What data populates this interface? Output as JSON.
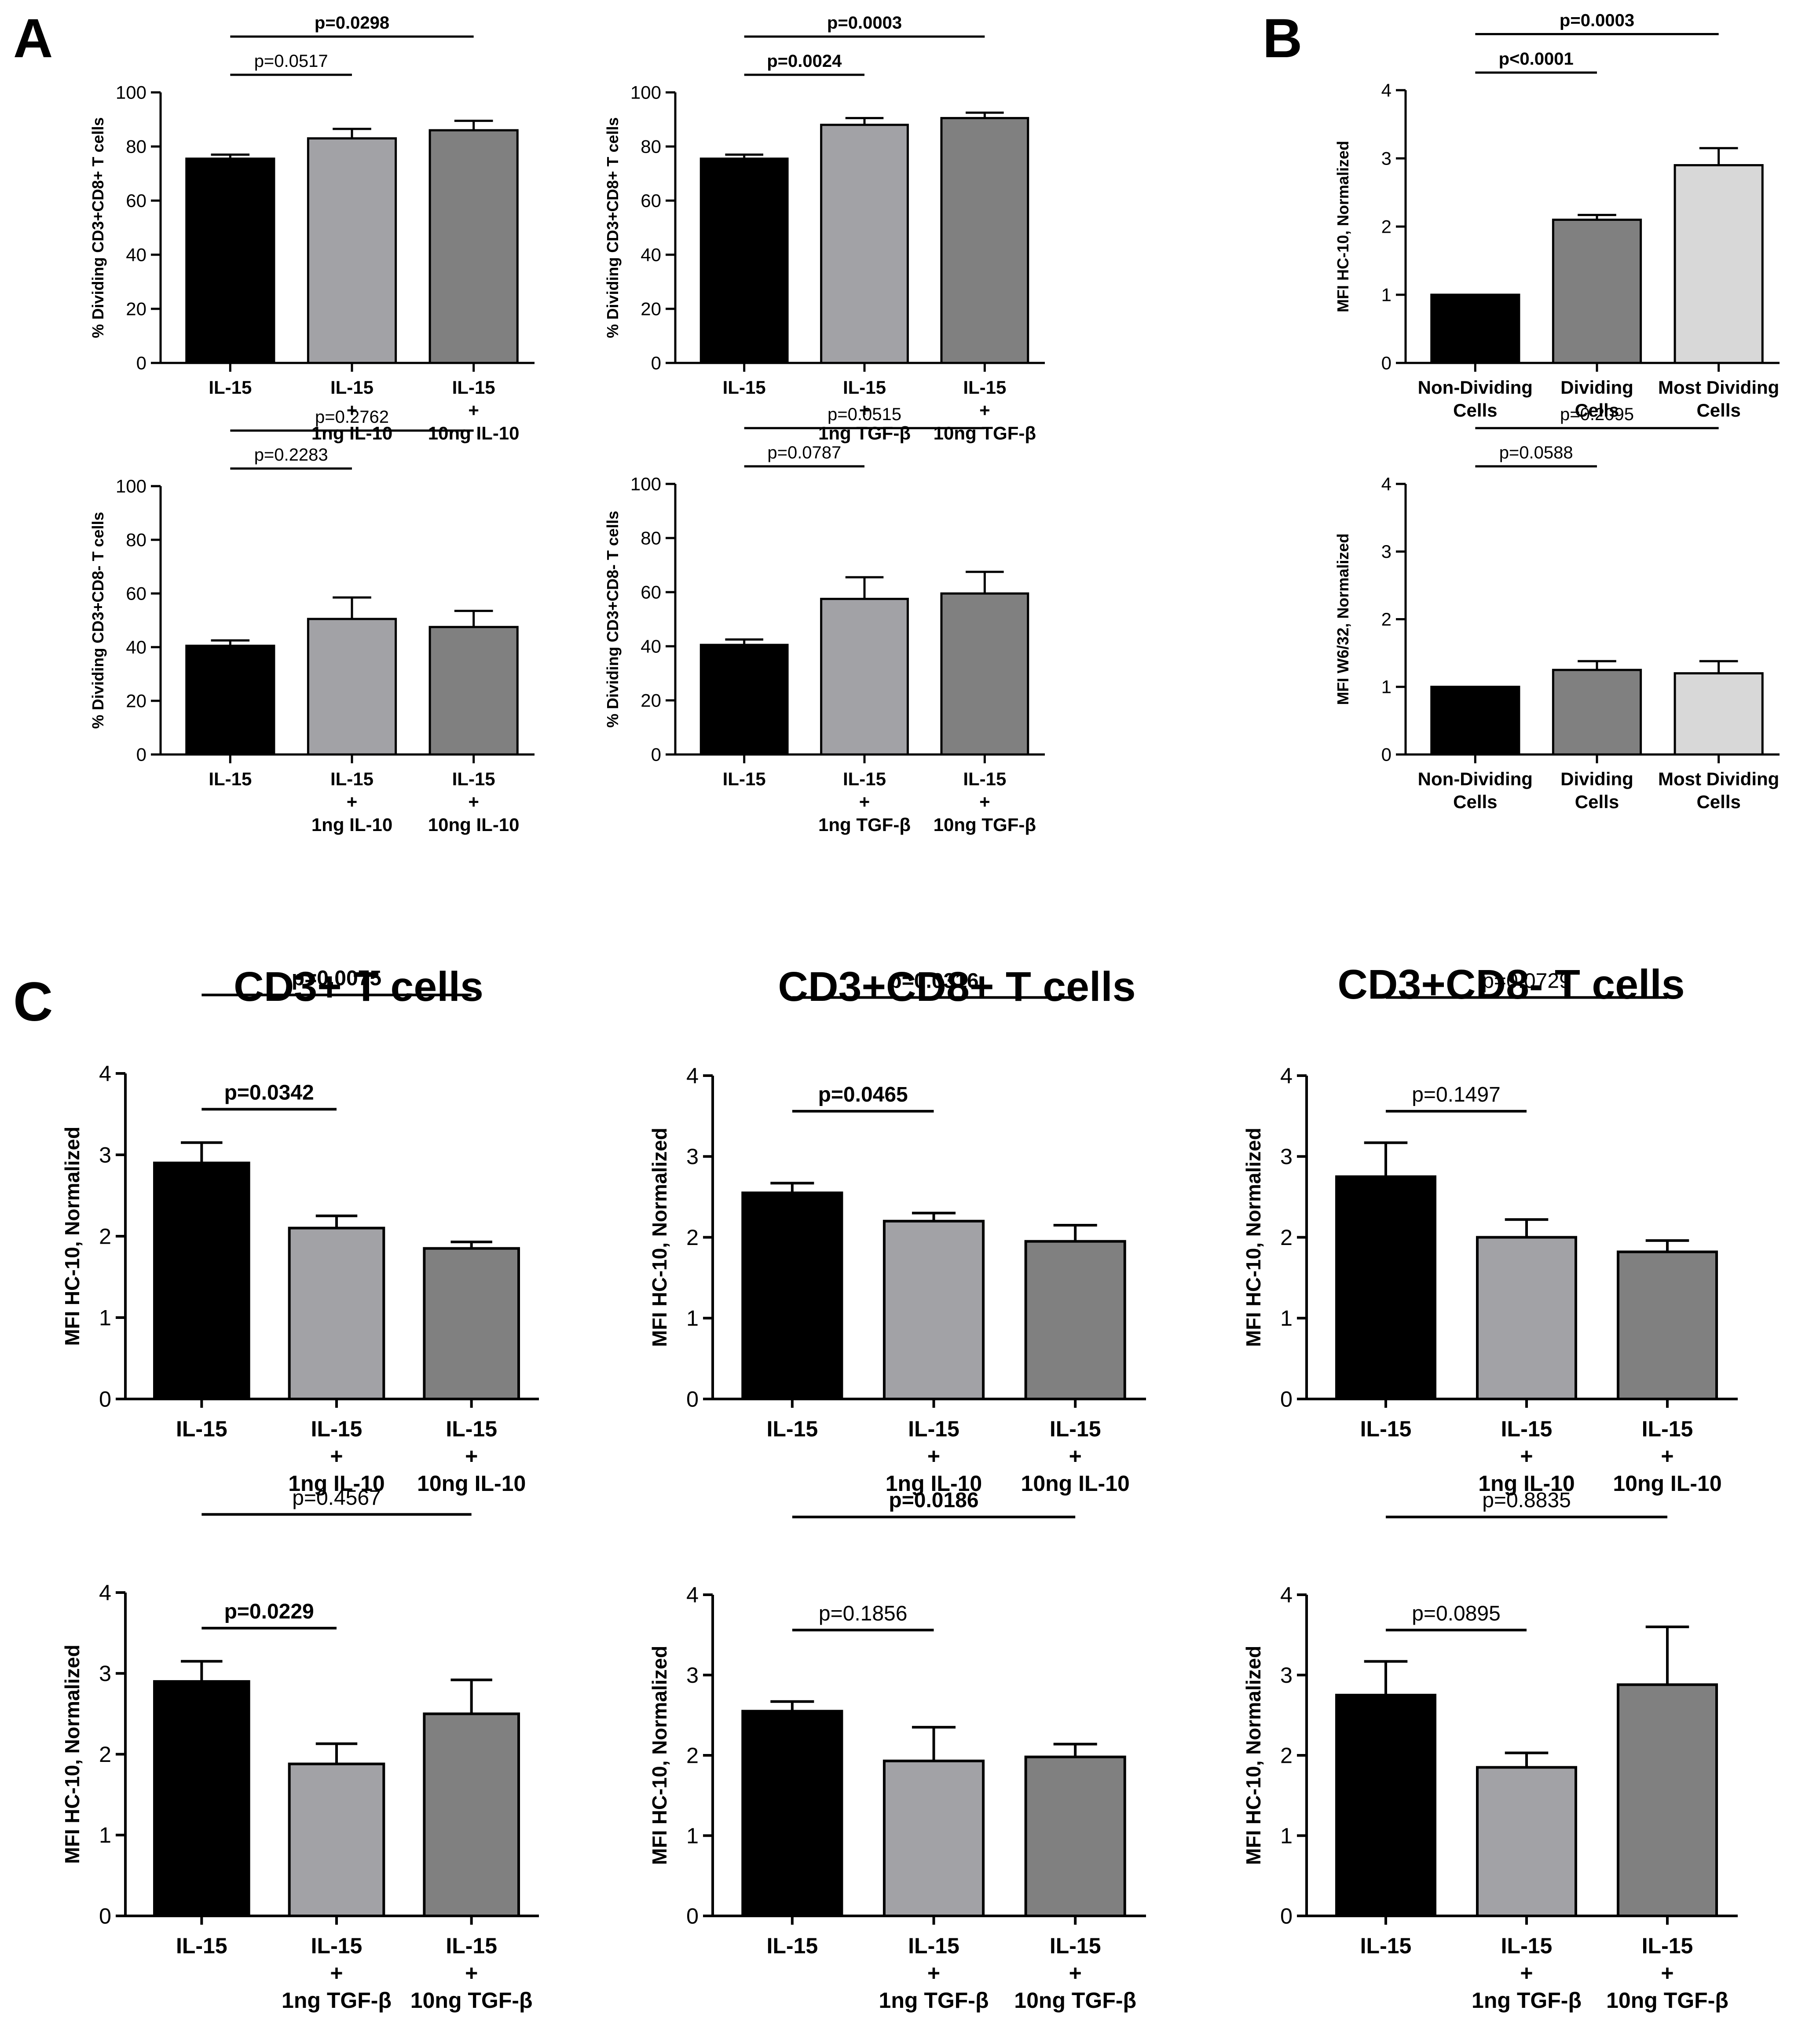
{
  "panel_labels": [
    "A",
    "B",
    "C"
  ],
  "section_titles": [
    "CD3+ T cells",
    "CD3+CD8+ T cells",
    "CD3+CD8- T cells"
  ],
  "colors": {
    "black": "#000000",
    "light_gray": "#a2a2a6",
    "mid_gray": "#808080",
    "pale_gray": "#d8d8d8"
  },
  "chart_data": [
    {
      "type": "bar",
      "panel": "A",
      "ylabel": "% Dividing CD3+CD8+ T cells",
      "ylim": [
        0,
        100
      ],
      "yticks": [
        "0",
        "20",
        "40",
        "60",
        "80",
        "100"
      ],
      "categories": [
        [
          "IL-15"
        ],
        [
          "IL-15",
          "+",
          "1ng IL-10"
        ],
        [
          "IL-15",
          "+",
          "10ng IL-10"
        ]
      ],
      "values": [
        75.5,
        83,
        86
      ],
      "errors": [
        1.5,
        3.5,
        3.5
      ],
      "colors": [
        "black",
        "light_gray",
        "mid_gray"
      ],
      "pvalues": [
        {
          "text": "p=0.0517",
          "from": 0,
          "to": 1,
          "bold": false
        },
        {
          "text": "p=0.0298",
          "from": 0,
          "to": 2,
          "bold": true
        }
      ]
    },
    {
      "type": "bar",
      "panel": "A",
      "ylabel": "% Dividing CD3+CD8+ T cells",
      "ylim": [
        0,
        100
      ],
      "yticks": [
        "0",
        "20",
        "40",
        "60",
        "80",
        "100"
      ],
      "categories": [
        [
          "IL-15"
        ],
        [
          "IL-15",
          "+",
          "1ng TGF-β"
        ],
        [
          "IL-15",
          "+",
          "10ng TGF-β"
        ]
      ],
      "values": [
        75.5,
        88,
        90.5
      ],
      "errors": [
        1.5,
        2.5,
        2
      ],
      "colors": [
        "black",
        "light_gray",
        "mid_gray"
      ],
      "pvalues": [
        {
          "text": "p=0.0024",
          "from": 0,
          "to": 1,
          "bold": true
        },
        {
          "text": "p=0.0003",
          "from": 0,
          "to": 2,
          "bold": true
        }
      ]
    },
    {
      "type": "bar",
      "panel": "B",
      "ylabel": "MFI HC-10, Normalized",
      "ylim": [
        0,
        4
      ],
      "yticks": [
        "0",
        "1",
        "2",
        "3",
        "4"
      ],
      "categories": [
        [
          "Non-Dividing",
          "Cells"
        ],
        [
          "Dividing",
          "Cells"
        ],
        [
          "Most Dividing",
          "Cells"
        ]
      ],
      "values": [
        1.0,
        2.1,
        2.9
      ],
      "errors": [
        0,
        0.07,
        0.25
      ],
      "colors": [
        "black",
        "mid_gray",
        "pale_gray"
      ],
      "pvalues": [
        {
          "text": "p<0.0001",
          "from": 0,
          "to": 1,
          "bold": true
        },
        {
          "text": "p=0.0003",
          "from": 0,
          "to": 2,
          "bold": true
        }
      ]
    },
    {
      "type": "bar",
      "panel": "A",
      "ylabel": "% Dividing CD3+CD8- T cells",
      "ylim": [
        0,
        100
      ],
      "yticks": [
        "0",
        "20",
        "40",
        "60",
        "80",
        "100"
      ],
      "categories": [
        [
          "IL-15"
        ],
        [
          "IL-15",
          "+",
          "1ng IL-10"
        ],
        [
          "IL-15",
          "+",
          "10ng IL-10"
        ]
      ],
      "values": [
        40.5,
        50.5,
        47.5
      ],
      "errors": [
        2,
        8,
        6
      ],
      "colors": [
        "black",
        "light_gray",
        "mid_gray"
      ],
      "pvalues": [
        {
          "text": "p=0.2283",
          "from": 0,
          "to": 1,
          "bold": false
        },
        {
          "text": "p=0.2762",
          "from": 0,
          "to": 2,
          "bold": false
        }
      ]
    },
    {
      "type": "bar",
      "panel": "A",
      "ylabel": "% Dividing CD3+CD8- T cells",
      "ylim": [
        0,
        100
      ],
      "yticks": [
        "0",
        "20",
        "40",
        "60",
        "80",
        "100"
      ],
      "categories": [
        [
          "IL-15"
        ],
        [
          "IL-15",
          "+",
          "1ng TGF-β"
        ],
        [
          "IL-15",
          "+",
          "10ng TGF-β"
        ]
      ],
      "values": [
        40.5,
        57.5,
        59.5
      ],
      "errors": [
        2,
        8,
        8
      ],
      "colors": [
        "black",
        "light_gray",
        "mid_gray"
      ],
      "pvalues": [
        {
          "text": "p=0.0787",
          "from": 0,
          "to": 1,
          "bold": false
        },
        {
          "text": "p=0.0515",
          "from": 0,
          "to": 2,
          "bold": false
        }
      ]
    },
    {
      "type": "bar",
      "panel": "B",
      "ylabel": "MFI W6/32, Normalized",
      "ylim": [
        0,
        4
      ],
      "yticks": [
        "0",
        "1",
        "2",
        "3",
        "4"
      ],
      "categories": [
        [
          "Non-Dividing",
          "Cells"
        ],
        [
          "Dividing",
          "Cells"
        ],
        [
          "Most Dividing",
          "Cells"
        ]
      ],
      "values": [
        1.0,
        1.25,
        1.2
      ],
      "errors": [
        0,
        0.13,
        0.18
      ],
      "colors": [
        "black",
        "mid_gray",
        "pale_gray"
      ],
      "pvalues": [
        {
          "text": "p=0.0588",
          "from": 0,
          "to": 1,
          "bold": false
        },
        {
          "text": "p=0.2095",
          "from": 0,
          "to": 2,
          "bold": false
        }
      ]
    },
    {
      "type": "bar",
      "panel": "C",
      "title": "CD3+ T cells",
      "ylabel": "MFI HC-10, Normalized",
      "ylim": [
        0,
        4
      ],
      "yticks": [
        "0",
        "1",
        "2",
        "3",
        "4"
      ],
      "categories": [
        [
          "IL-15"
        ],
        [
          "IL-15",
          "+",
          "1ng IL-10"
        ],
        [
          "IL-15",
          "+",
          "10ng IL-10"
        ]
      ],
      "values": [
        2.9,
        2.1,
        1.85
      ],
      "errors": [
        0.25,
        0.15,
        0.08
      ],
      "colors": [
        "black",
        "light_gray",
        "mid_gray"
      ],
      "pvalues": [
        {
          "text": "p=0.0342",
          "from": 0,
          "to": 1,
          "bold": true
        },
        {
          "text": "p=0.0075",
          "from": 0,
          "to": 2,
          "bold": true
        }
      ]
    },
    {
      "type": "bar",
      "panel": "C",
      "title": "CD3+CD8+ T cells",
      "ylabel": "MFI HC-10, Normalized",
      "ylim": [
        0,
        4
      ],
      "yticks": [
        "0",
        "1",
        "2",
        "3",
        "4"
      ],
      "categories": [
        [
          "IL-15"
        ],
        [
          "IL-15",
          "+",
          "1ng IL-10"
        ],
        [
          "IL-15",
          "+",
          "10ng IL-10"
        ]
      ],
      "values": [
        2.55,
        2.2,
        1.95
      ],
      "errors": [
        0.12,
        0.1,
        0.2
      ],
      "colors": [
        "black",
        "light_gray",
        "mid_gray"
      ],
      "pvalues": [
        {
          "text": "p=0.0465",
          "from": 0,
          "to": 1,
          "bold": true
        },
        {
          "text": "p=0.0316",
          "from": 0,
          "to": 2,
          "bold": true
        }
      ]
    },
    {
      "type": "bar",
      "panel": "C",
      "title": "CD3+CD8- T cells",
      "ylabel": "MFI HC-10, Normalized",
      "ylim": [
        0,
        4
      ],
      "yticks": [
        "0",
        "1",
        "2",
        "3",
        "4"
      ],
      "categories": [
        [
          "IL-15"
        ],
        [
          "IL-15",
          "+",
          "1ng IL-10"
        ],
        [
          "IL-15",
          "+",
          "10ng IL-10"
        ]
      ],
      "values": [
        2.75,
        2.0,
        1.82
      ],
      "errors": [
        0.42,
        0.22,
        0.14
      ],
      "colors": [
        "black",
        "light_gray",
        "mid_gray"
      ],
      "pvalues": [
        {
          "text": "p=0.1497",
          "from": 0,
          "to": 1,
          "bold": false
        },
        {
          "text": "p=0.0729",
          "from": 0,
          "to": 2,
          "bold": false
        }
      ]
    },
    {
      "type": "bar",
      "panel": "C",
      "ylabel": "MFI HC-10, Normalized",
      "ylim": [
        0,
        4
      ],
      "yticks": [
        "0",
        "1",
        "2",
        "3",
        "4"
      ],
      "categories": [
        [
          "IL-15"
        ],
        [
          "IL-15",
          "+",
          "1ng TGF-β"
        ],
        [
          "IL-15",
          "+",
          "10ng TGF-β"
        ]
      ],
      "values": [
        2.9,
        1.88,
        2.5
      ],
      "errors": [
        0.25,
        0.25,
        0.42
      ],
      "colors": [
        "black",
        "light_gray",
        "mid_gray"
      ],
      "pvalues": [
        {
          "text": "p=0.0229",
          "from": 0,
          "to": 1,
          "bold": true
        },
        {
          "text": "p=0.4567",
          "from": 0,
          "to": 2,
          "bold": false
        }
      ]
    },
    {
      "type": "bar",
      "panel": "C",
      "ylabel": "MFI HC-10, Normalized",
      "ylim": [
        0,
        4
      ],
      "yticks": [
        "0",
        "1",
        "2",
        "3",
        "4"
      ],
      "categories": [
        [
          "IL-15"
        ],
        [
          "IL-15",
          "+",
          "1ng TGF-β"
        ],
        [
          "IL-15",
          "+",
          "10ng TGF-β"
        ]
      ],
      "values": [
        2.55,
        1.93,
        1.98
      ],
      "errors": [
        0.12,
        0.42,
        0.16
      ],
      "colors": [
        "black",
        "light_gray",
        "mid_gray"
      ],
      "pvalues": [
        {
          "text": "p=0.1856",
          "from": 0,
          "to": 1,
          "bold": false
        },
        {
          "text": "p=0.0186",
          "from": 0,
          "to": 2,
          "bold": true
        }
      ]
    },
    {
      "type": "bar",
      "panel": "C",
      "ylabel": "MFI HC-10, Normalized",
      "ylim": [
        0,
        4
      ],
      "yticks": [
        "0",
        "1",
        "2",
        "3",
        "4"
      ],
      "categories": [
        [
          "IL-15"
        ],
        [
          "IL-15",
          "+",
          "1ng TGF-β"
        ],
        [
          "IL-15",
          "+",
          "10ng TGF-β"
        ]
      ],
      "values": [
        2.75,
        1.85,
        2.88
      ],
      "errors": [
        0.42,
        0.18,
        0.72
      ],
      "colors": [
        "black",
        "light_gray",
        "mid_gray"
      ],
      "pvalues": [
        {
          "text": "p=0.0895",
          "from": 0,
          "to": 1,
          "bold": false
        },
        {
          "text": "p=0.8835",
          "from": 0,
          "to": 2,
          "bold": false
        }
      ]
    }
  ]
}
